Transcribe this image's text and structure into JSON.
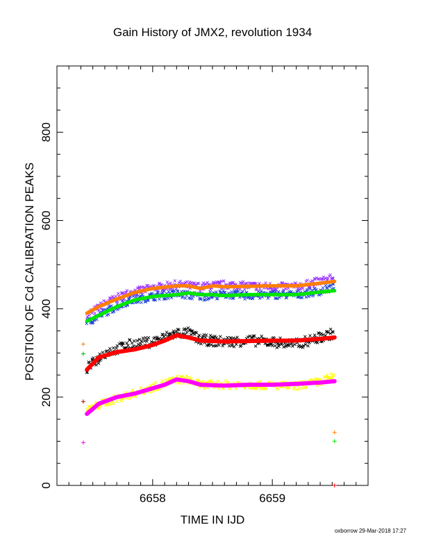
{
  "chart_data": {
    "type": "scatter",
    "title": "Gain History of JMX2, revolution 1934",
    "xlabel": "TIME IN IJD",
    "ylabel": "POSITION OF Cd CALIBRATION PEAKS",
    "xlim": [
      6657.2,
      6659.8
    ],
    "ylim": [
      0,
      950
    ],
    "x_ticks": [
      6658,
      6659
    ],
    "y_ticks": [
      0,
      200,
      400,
      600,
      800
    ],
    "grid": false,
    "legend": "none",
    "series": [
      {
        "color": "#9b30ff",
        "marker": "x",
        "noise": 9,
        "x": [
          6657.45,
          6657.6,
          6657.8,
          6658.0,
          6658.2,
          6658.4,
          6658.6,
          6658.8,
          6659.0,
          6659.2,
          6659.4,
          6659.52
        ],
        "y": [
          385,
          412,
          436,
          447,
          455,
          450,
          455,
          452,
          450,
          450,
          463,
          470
        ]
      },
      {
        "color": "#1c3fd6",
        "marker": "x",
        "noise": 9,
        "x": [
          6657.45,
          6657.6,
          6657.8,
          6658.0,
          6658.2,
          6658.4,
          6658.6,
          6658.8,
          6659.0,
          6659.2,
          6659.4,
          6659.52
        ],
        "y": [
          368,
          392,
          418,
          428,
          434,
          428,
          433,
          430,
          432,
          432,
          440,
          450
        ]
      },
      {
        "color": "#000000",
        "marker": "x",
        "noise": 12,
        "x": [
          6657.45,
          6657.6,
          6657.8,
          6658.0,
          6658.2,
          6658.3,
          6658.4,
          6658.6,
          6658.8,
          6659.0,
          6659.2,
          6659.4,
          6659.52
        ],
        "y": [
          265,
          300,
          318,
          325,
          345,
          345,
          330,
          325,
          328,
          325,
          320,
          335,
          345
        ]
      },
      {
        "color": "#ffff00",
        "marker": "x",
        "noise": 9,
        "x": [
          6657.45,
          6657.6,
          6657.8,
          6658.0,
          6658.2,
          6658.3,
          6658.4,
          6658.6,
          6658.8,
          6659.0,
          6659.2,
          6659.4,
          6659.52
        ],
        "y": [
          170,
          188,
          205,
          222,
          240,
          240,
          228,
          228,
          228,
          226,
          225,
          235,
          248
        ]
      },
      {
        "color": "#ff7f00",
        "marker": "line",
        "width": 5,
        "x": [
          6657.45,
          6657.55,
          6657.7,
          6657.85,
          6658.0,
          6658.2,
          6658.3,
          6658.4,
          6658.5,
          6658.6,
          6658.8,
          6659.0,
          6659.2,
          6659.4,
          6659.52
        ],
        "y": [
          390,
          405,
          422,
          437,
          446,
          452,
          452,
          446,
          452,
          450,
          451,
          452,
          452,
          458,
          462
        ]
      },
      {
        "color": "#00e600",
        "marker": "line",
        "width": 5,
        "x": [
          6657.45,
          6657.55,
          6657.7,
          6657.85,
          6658.0,
          6658.2,
          6658.3,
          6658.4,
          6658.5,
          6658.6,
          6658.8,
          6659.0,
          6659.2,
          6659.4,
          6659.52
        ],
        "y": [
          372,
          385,
          405,
          420,
          428,
          432,
          436,
          432,
          432,
          430,
          432,
          432,
          432,
          438,
          441
        ]
      },
      {
        "color": "#ff0000",
        "marker": "line",
        "width": 6,
        "x": [
          6657.45,
          6657.55,
          6657.7,
          6657.85,
          6658.0,
          6658.1,
          6658.2,
          6658.3,
          6658.4,
          6658.6,
          6658.8,
          6659.0,
          6659.2,
          6659.4,
          6659.52
        ],
        "y": [
          262,
          290,
          302,
          308,
          318,
          328,
          340,
          335,
          328,
          326,
          327,
          328,
          328,
          332,
          335
        ]
      },
      {
        "color": "#ff00ff",
        "marker": "line",
        "width": 6,
        "x": [
          6657.45,
          6657.55,
          6657.7,
          6657.85,
          6658.0,
          6658.1,
          6658.2,
          6658.3,
          6658.4,
          6658.6,
          6658.8,
          6659.0,
          6659.2,
          6659.4,
          6659.52
        ],
        "y": [
          162,
          185,
          200,
          208,
          220,
          228,
          240,
          236,
          228,
          226,
          228,
          228,
          230,
          233,
          236
        ]
      }
    ],
    "reference_markers": [
      {
        "color": "#ff7f00",
        "x": 6657.42,
        "y": 320
      },
      {
        "color": "#00b300",
        "x": 6657.42,
        "y": 298
      },
      {
        "color": "#b00000",
        "x": 6657.42,
        "y": 190
      },
      {
        "color": "#ff00ff",
        "x": 6657.42,
        "y": 97
      },
      {
        "color": "#ff7f00",
        "x": 6659.52,
        "y": 120
      },
      {
        "color": "#00e600",
        "x": 6659.52,
        "y": 100
      },
      {
        "color": "#ff0000",
        "x": 6659.52,
        "y": 0
      }
    ]
  },
  "footer": {
    "credit": "oxborrow 29-Mar-2018 17:27"
  }
}
